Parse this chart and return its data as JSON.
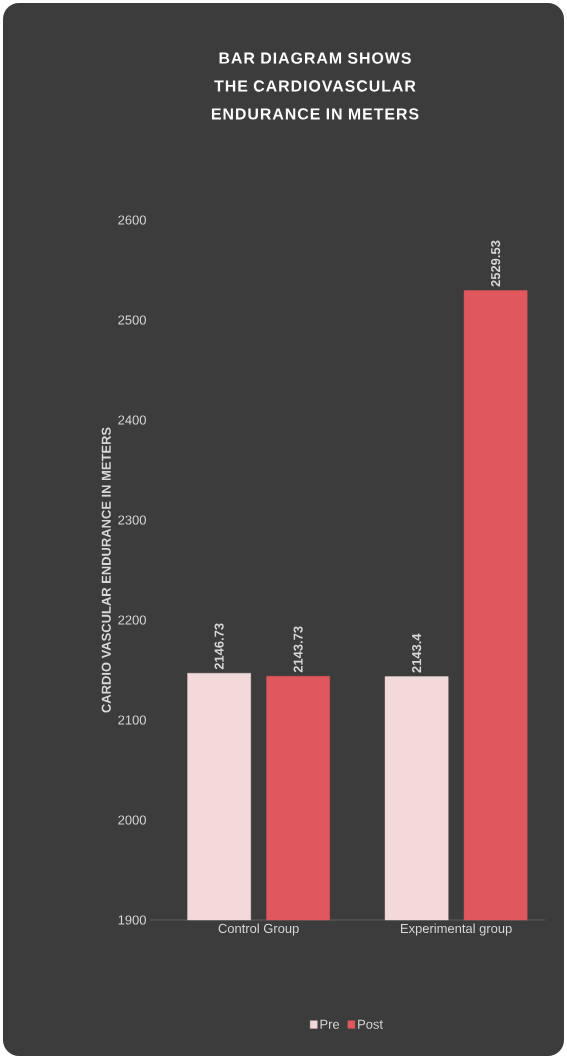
{
  "chart_data": {
    "type": "bar",
    "title": "BAR DIAGRAM SHOWS THE CARDIOVASCULAR ENDURANCE IN METERS",
    "ylabel": "CARDIO VASCULAR ENDURANCE IN METERS",
    "categories": [
      "Control Group",
      "Experimental group"
    ],
    "series": [
      {
        "name": "Pre",
        "color": "#f2dada",
        "values": [
          2146.73,
          2143.4
        ]
      },
      {
        "name": "Post",
        "color": "#e0575d",
        "values": [
          2143.73,
          2529.53
        ]
      }
    ],
    "ylim": [
      1900,
      2600
    ],
    "yticks": [
      1900,
      2000,
      2100,
      2200,
      2300,
      2400,
      2500,
      2600
    ],
    "data_labels": true,
    "legend": "bottom"
  }
}
